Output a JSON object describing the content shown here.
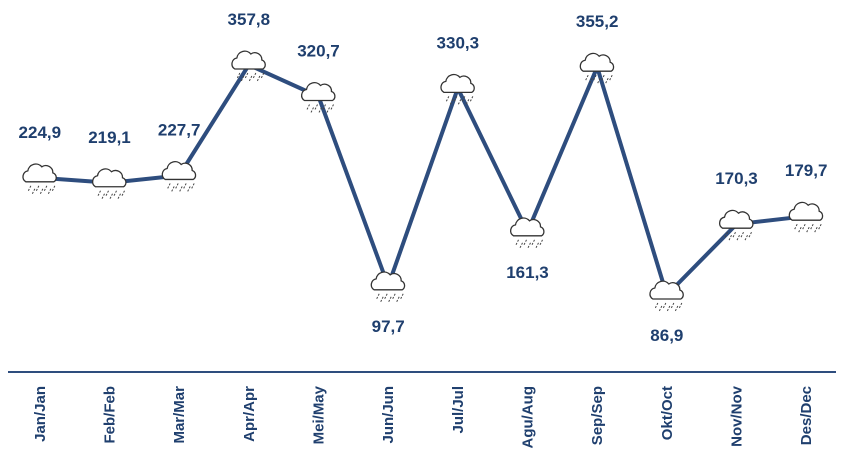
{
  "chart_data": {
    "type": "line",
    "categories": [
      "Jan/Jan",
      "Feb/Feb",
      "Mar/Mar",
      "Apr/Apr",
      "Mei/May",
      "Jun/Jun",
      "Jul/Jul",
      "Agu/Aug",
      "Sep/Sep",
      "Okt/Oct",
      "Nov/Nov",
      "Des/Dec"
    ],
    "values": [
      224.9,
      219.1,
      227.7,
      357.8,
      320.7,
      97.7,
      330.3,
      161.3,
      355.2,
      86.9,
      170.3,
      179.7
    ],
    "value_labels": [
      "224,9",
      "219,1",
      "227,7",
      "357,8",
      "320,7",
      "97,7",
      "330,3",
      "161,3",
      "355,2",
      "86,9",
      "170,3",
      "179,7"
    ],
    "color": "#2e4d7e"
  }
}
